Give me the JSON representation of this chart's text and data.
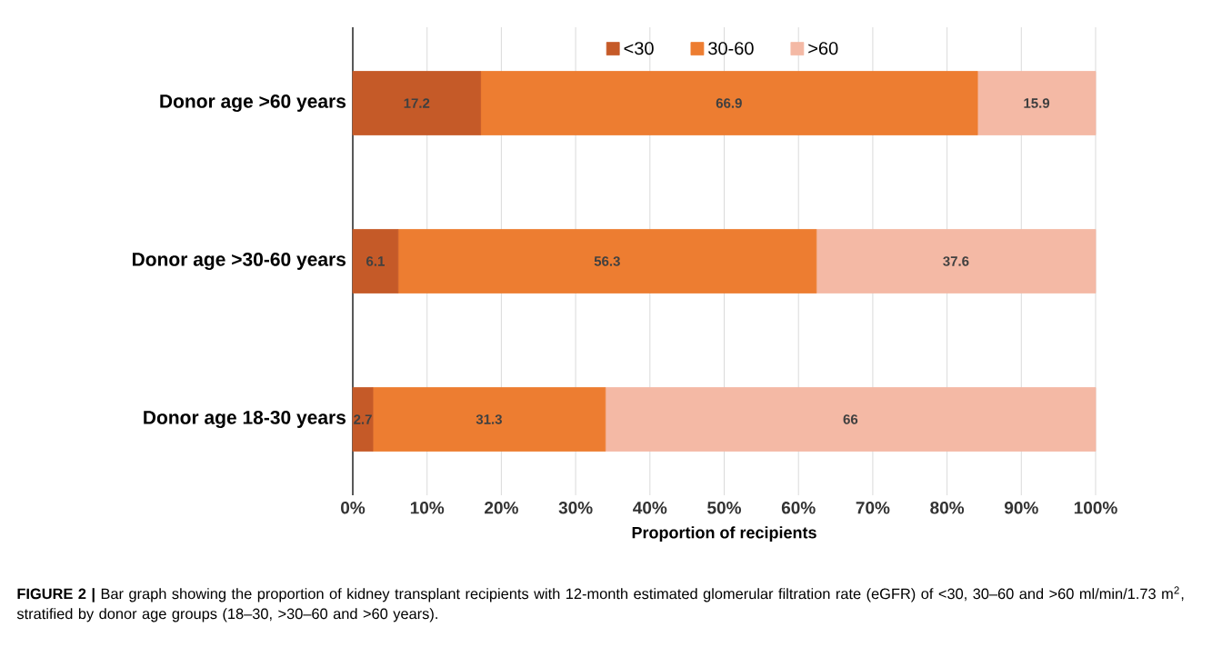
{
  "chart_data": {
    "type": "bar",
    "orientation": "horizontal",
    "stacked": true,
    "categories": [
      "Donor age >60 years",
      "Donor age >30-60 years",
      "Donor age 18-30 years"
    ],
    "series": [
      {
        "name": "<30",
        "color": "#c55a28",
        "values": [
          17.2,
          6.1,
          2.7
        ]
      },
      {
        "name": "30-60",
        "color": "#ed7d31",
        "values": [
          66.9,
          56.3,
          31.3
        ]
      },
      {
        "name": ">60",
        "color": "#f4b9a5",
        "values": [
          15.9,
          37.6,
          66
        ]
      }
    ],
    "xlabel": "Proportion of recipients",
    "xlim": [
      0,
      100
    ],
    "xticks": [
      {
        "value": 0,
        "label": "0%"
      },
      {
        "value": 10,
        "label": "10%"
      },
      {
        "value": 20,
        "label": "20%"
      },
      {
        "value": 30,
        "label": "30%"
      },
      {
        "value": 40,
        "label": "40%"
      },
      {
        "value": 50,
        "label": "50%"
      },
      {
        "value": 60,
        "label": "60%"
      },
      {
        "value": 70,
        "label": "70%"
      },
      {
        "value": 80,
        "label": "80%"
      },
      {
        "value": 90,
        "label": "90%"
      },
      {
        "value": 100,
        "label": "100%"
      }
    ],
    "grid": "x",
    "legend": "top",
    "data_labels": true,
    "annotations": [
      "**FIGURE 2 |** Bar graph showing the proportion of kidney transplant recipients with 12-month estimated glomerular filtration rate (eGFR) of <30, 30–60 and >60 ml/min/1.73 m$^{2}$, stratified by donor age groups (18–30, >30–60 and >60 years)."
    ]
  }
}
